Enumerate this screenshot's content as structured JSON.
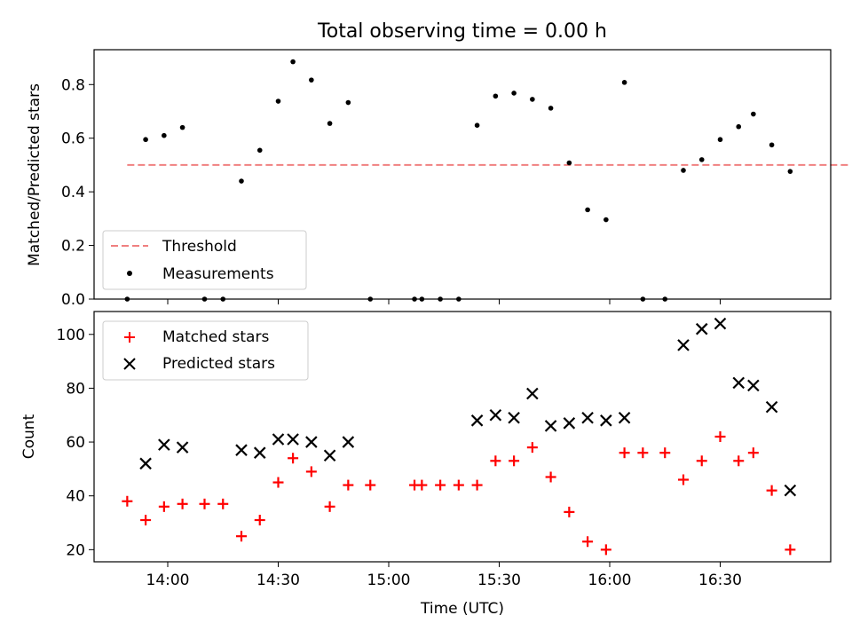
{
  "figure": {
    "title": "Total observing time = 0.00 h",
    "xlabel": "Time (UTC)"
  },
  "chart_data": [
    {
      "type": "scatter",
      "ylabel": "Matched/Predicted stars",
      "xlim": [
        "13:40",
        "17:00"
      ],
      "ylim": [
        0,
        0.93
      ],
      "yticks": [
        0.0,
        0.2,
        0.4,
        0.6,
        0.8
      ],
      "legend_position": "lower-left",
      "grid": false,
      "threshold": {
        "name": "Threshold",
        "value": 0.5,
        "x_range": [
          "13:49",
          "17:05"
        ],
        "color": "#f08080",
        "style": "dashed"
      },
      "series": [
        {
          "name": "Measurements",
          "color": "#000000",
          "marker": "dot",
          "x": [
            "13:49",
            "13:54",
            "13:59",
            "14:04",
            "14:10",
            "14:15",
            "14:20",
            "14:25",
            "14:30",
            "14:34",
            "14:39",
            "14:44",
            "14:49",
            "14:55",
            "15:07",
            "15:09",
            "15:14",
            "15:19",
            "15:24",
            "15:29",
            "15:34",
            "15:39",
            "15:44",
            "15:49",
            "15:54",
            "15:59",
            "16:04",
            "16:09",
            "16:15",
            "16:20",
            "16:25",
            "16:30",
            "16:35",
            "16:39",
            "16:44",
            "16:49"
          ],
          "y": [
            0.0,
            0.595,
            0.61,
            0.64,
            0.0,
            0.0,
            0.44,
            0.555,
            0.738,
            0.885,
            0.817,
            0.655,
            0.733,
            0.0,
            0.0,
            0.0,
            0.0,
            0.0,
            0.648,
            0.757,
            0.768,
            0.745,
            0.712,
            0.508,
            0.333,
            0.296,
            0.808,
            0.0,
            0.0,
            0.48,
            0.52,
            0.595,
            0.643,
            0.69,
            0.575,
            0.476
          ]
        }
      ]
    },
    {
      "type": "scatter",
      "ylabel": "Count",
      "xlim": [
        "13:40",
        "17:00"
      ],
      "ylim": [
        15.5,
        108.5
      ],
      "yticks": [
        20,
        40,
        60,
        80,
        100
      ],
      "xticks": [
        "14:00",
        "14:30",
        "15:00",
        "15:30",
        "16:00",
        "16:30"
      ],
      "legend_position": "upper-left",
      "grid": false,
      "series": [
        {
          "name": "Matched stars",
          "color": "#ff0000",
          "marker": "plus",
          "x": [
            "13:49",
            "13:54",
            "13:59",
            "14:04",
            "14:10",
            "14:15",
            "14:20",
            "14:25",
            "14:30",
            "14:34",
            "14:39",
            "14:44",
            "14:49",
            "14:55",
            "15:07",
            "15:09",
            "15:14",
            "15:19",
            "15:24",
            "15:29",
            "15:34",
            "15:39",
            "15:44",
            "15:49",
            "15:54",
            "15:59",
            "16:04",
            "16:09",
            "16:15",
            "16:20",
            "16:25",
            "16:30",
            "16:35",
            "16:39",
            "16:44",
            "16:49"
          ],
          "y": [
            38,
            31,
            36,
            37,
            37,
            37,
            25,
            31,
            45,
            54,
            49,
            36,
            44,
            44,
            44,
            44,
            44,
            44,
            44,
            53,
            53,
            58,
            47,
            34,
            23,
            20,
            56,
            56,
            56,
            46,
            53,
            62,
            53,
            56,
            42,
            20
          ]
        },
        {
          "name": "Predicted stars",
          "color": "#000000",
          "marker": "x",
          "x": [
            "13:54",
            "13:59",
            "14:04",
            "14:20",
            "14:25",
            "14:30",
            "14:34",
            "14:39",
            "14:44",
            "14:49",
            "15:24",
            "15:29",
            "15:34",
            "15:39",
            "15:44",
            "15:49",
            "15:54",
            "15:59",
            "16:04",
            "16:20",
            "16:25",
            "16:30",
            "16:35",
            "16:39",
            "16:44",
            "16:49"
          ],
          "y": [
            52,
            59,
            58,
            57,
            56,
            61,
            61,
            60,
            55,
            60,
            68,
            70,
            69,
            78,
            66,
            67,
            69,
            68,
            69,
            96,
            102,
            104,
            82,
            81,
            73,
            42
          ]
        }
      ]
    }
  ]
}
